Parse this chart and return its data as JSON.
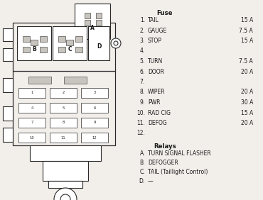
{
  "fuse_header": "Fuse",
  "fuses": [
    {
      "num": "1.",
      "name": "TAIL",
      "amp": "15 A"
    },
    {
      "num": "2.",
      "name": "GAUGE",
      "amp": "7.5 A"
    },
    {
      "num": "3.",
      "name": "STOP",
      "amp": "15 A"
    },
    {
      "num": "4.",
      "name": "",
      "amp": ""
    },
    {
      "num": "5.",
      "name": "TURN",
      "amp": "7.5 A"
    },
    {
      "num": "6.",
      "name": "DOOR",
      "amp": "20 A"
    },
    {
      "num": "7.",
      "name": "",
      "amp": ""
    },
    {
      "num": "8.",
      "name": "WIPER",
      "amp": "20 A"
    },
    {
      "num": "9.",
      "name": "PWR",
      "amp": "30 A"
    },
    {
      "num": "10.",
      "name": "RAD CIG",
      "amp": "15 A"
    },
    {
      "num": "11.",
      "name": "DEFOG",
      "amp": "20 A"
    },
    {
      "num": "12.",
      "name": "",
      "amp": ""
    }
  ],
  "relay_header": "Relays",
  "relays": [
    {
      "letter": "A.",
      "name": "TURN SIGNAL FLASHER"
    },
    {
      "letter": "B.",
      "name": "DEFOGGER"
    },
    {
      "letter": "C.",
      "name": "TAIL (Taillight Control)"
    },
    {
      "letter": "D.",
      "name": "—"
    }
  ],
  "bg_color": "#f2eeea",
  "line_color": "#2a2a2a",
  "text_color": "#1a1a1a",
  "gray_fill": "#c8c4be",
  "white_fill": "#ffffff",
  "slot_labels": [
    [
      "1",
      "2",
      "3"
    ],
    [
      "4",
      "5",
      "6"
    ],
    [
      "7",
      "8",
      "9"
    ],
    [
      "10",
      "11",
      "12"
    ]
  ]
}
